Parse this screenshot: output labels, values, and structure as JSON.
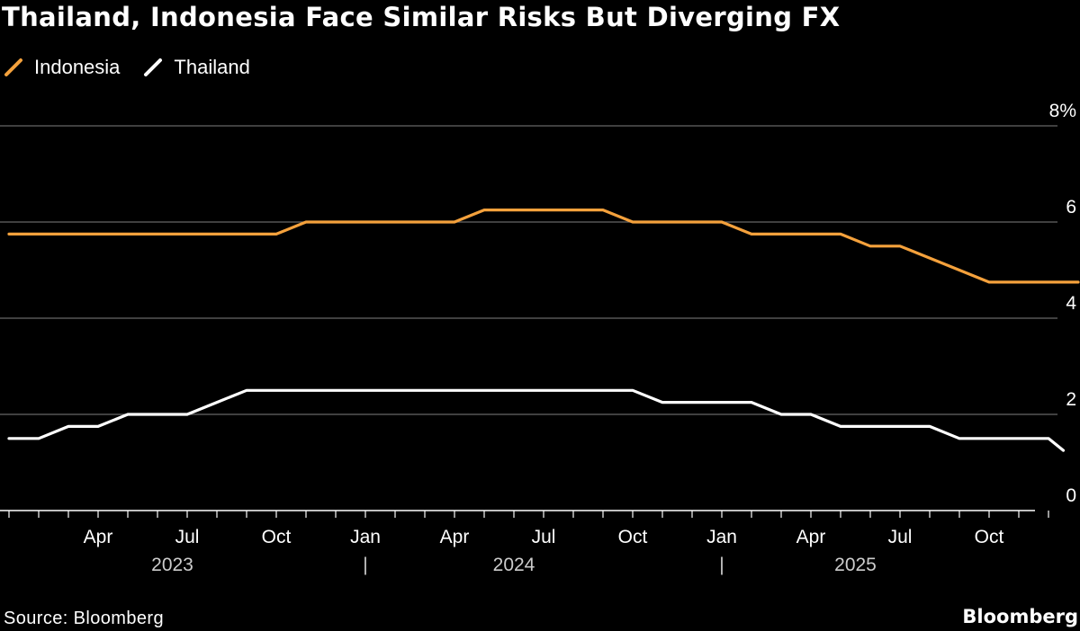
{
  "chart_data": {
    "type": "line",
    "title": "Thailand, Indonesia Face Similar Risks But Diverging FX",
    "source": "Source: Bloomberg",
    "brand": "Bloomberg",
    "y_unit": "%",
    "ylim": [
      0,
      8
    ],
    "y_ticks": [
      0,
      2,
      4,
      6,
      8
    ],
    "y_tick_labels": [
      "0",
      "2",
      "4",
      "6",
      "8%"
    ],
    "x_ticks": [
      {
        "m": 3,
        "label": "Apr"
      },
      {
        "m": 6,
        "label": "Jul"
      },
      {
        "m": 9,
        "label": "Oct"
      },
      {
        "m": 12,
        "label": "Jan"
      },
      {
        "m": 15,
        "label": "Apr"
      },
      {
        "m": 18,
        "label": "Jul"
      },
      {
        "m": 21,
        "label": "Oct"
      },
      {
        "m": 24,
        "label": "Jan"
      },
      {
        "m": 27,
        "label": "Apr"
      },
      {
        "m": 30,
        "label": "Jul"
      },
      {
        "m": 33,
        "label": "Oct"
      }
    ],
    "years": [
      {
        "m": 5.5,
        "label": "2023"
      },
      {
        "m": 17,
        "label": "2024"
      },
      {
        "m": 28.5,
        "label": "2025"
      }
    ],
    "year_separators": [
      {
        "m": 12,
        "label": "|"
      },
      {
        "m": 24,
        "label": "|"
      }
    ],
    "x_start": "2023-01",
    "series": [
      {
        "name": "Indonesia",
        "color": "#f4a13c",
        "points": [
          [
            0,
            5.75
          ],
          [
            1,
            5.75
          ],
          [
            2,
            5.75
          ],
          [
            3,
            5.75
          ],
          [
            4,
            5.75
          ],
          [
            5,
            5.75
          ],
          [
            6,
            5.75
          ],
          [
            7,
            5.75
          ],
          [
            8,
            5.75
          ],
          [
            9,
            5.75
          ],
          [
            10,
            6.0
          ],
          [
            11,
            6.0
          ],
          [
            12,
            6.0
          ],
          [
            13,
            6.0
          ],
          [
            14,
            6.0
          ],
          [
            15,
            6.0
          ],
          [
            16,
            6.25
          ],
          [
            17,
            6.25
          ],
          [
            18,
            6.25
          ],
          [
            19,
            6.25
          ],
          [
            20,
            6.25
          ],
          [
            21,
            6.0
          ],
          [
            22,
            6.0
          ],
          [
            23,
            6.0
          ],
          [
            24,
            6.0
          ],
          [
            25,
            5.75
          ],
          [
            26,
            5.75
          ],
          [
            27,
            5.75
          ],
          [
            28,
            5.75
          ],
          [
            29,
            5.5
          ],
          [
            30,
            5.5
          ],
          [
            31,
            5.25
          ],
          [
            32,
            5.0
          ],
          [
            33,
            4.75
          ],
          [
            34,
            4.75
          ],
          [
            35,
            4.75
          ],
          [
            36,
            4.75
          ]
        ]
      },
      {
        "name": "Thailand",
        "color": "#ffffff",
        "points": [
          [
            0,
            1.5
          ],
          [
            1,
            1.5
          ],
          [
            2,
            1.75
          ],
          [
            3,
            1.75
          ],
          [
            4,
            2.0
          ],
          [
            5,
            2.0
          ],
          [
            6,
            2.0
          ],
          [
            7,
            2.25
          ],
          [
            8,
            2.5
          ],
          [
            9,
            2.5
          ],
          [
            10,
            2.5
          ],
          [
            11,
            2.5
          ],
          [
            12,
            2.5
          ],
          [
            13,
            2.5
          ],
          [
            14,
            2.5
          ],
          [
            15,
            2.5
          ],
          [
            16,
            2.5
          ],
          [
            17,
            2.5
          ],
          [
            18,
            2.5
          ],
          [
            19,
            2.5
          ],
          [
            20,
            2.5
          ],
          [
            21,
            2.5
          ],
          [
            22,
            2.25
          ],
          [
            23,
            2.25
          ],
          [
            24,
            2.25
          ],
          [
            25,
            2.25
          ],
          [
            26,
            2.0
          ],
          [
            27,
            2.0
          ],
          [
            28,
            1.75
          ],
          [
            29,
            1.75
          ],
          [
            30,
            1.75
          ],
          [
            31,
            1.75
          ],
          [
            32,
            1.5
          ],
          [
            33,
            1.5
          ],
          [
            34,
            1.5
          ],
          [
            35,
            1.5
          ],
          [
            35.5,
            1.25
          ]
        ]
      }
    ]
  }
}
